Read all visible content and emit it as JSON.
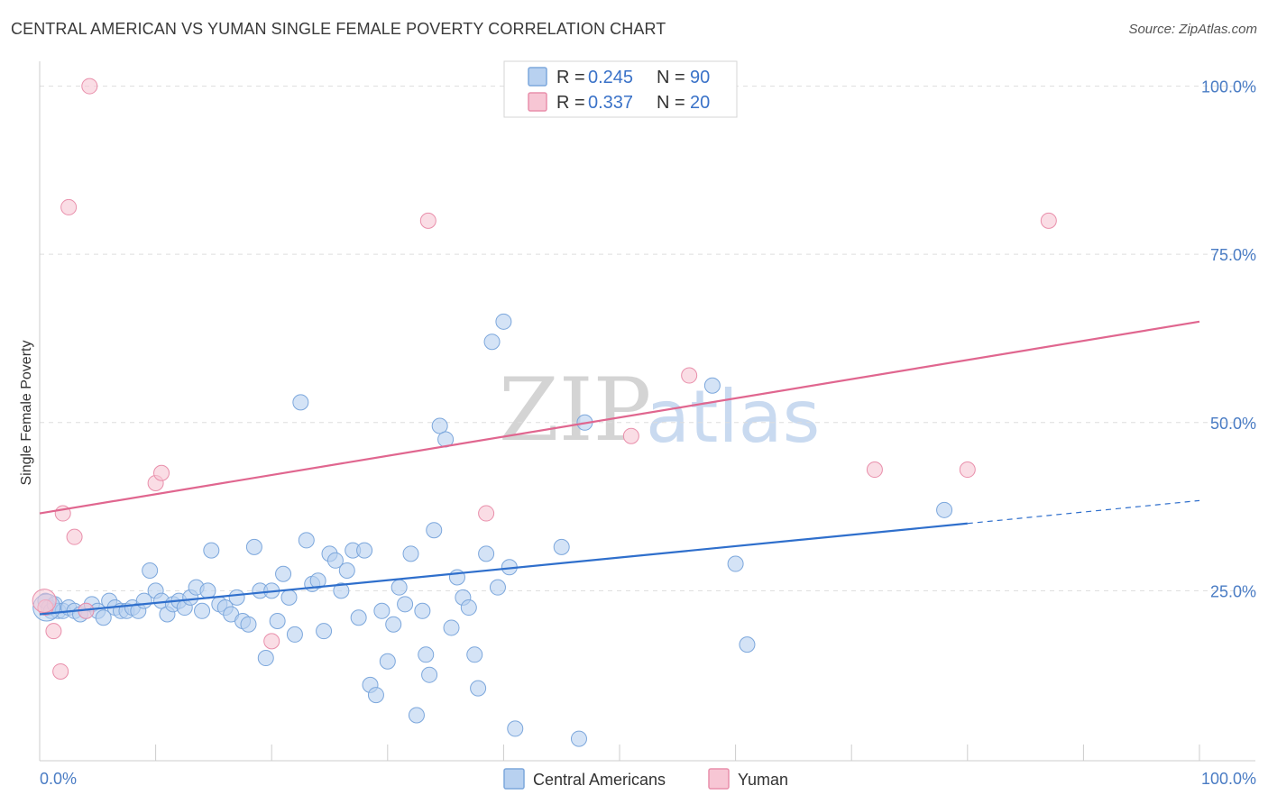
{
  "header": {
    "title": "CENTRAL AMERICAN VS YUMAN SINGLE FEMALE POVERTY CORRELATION CHART",
    "source": "Source: ZipAtlas.com"
  },
  "watermark": {
    "zip": "ZIP",
    "atlas": "atlas"
  },
  "colors": {
    "blue_fill": "#b8d1f0",
    "blue_stroke": "#7ca7dc",
    "blue_line": "#2f6fcc",
    "pink_fill": "#f7c6d4",
    "pink_stroke": "#e98fab",
    "pink_line": "#e0668f",
    "grid": "#dddddd"
  },
  "legend": {
    "rows": [
      {
        "r_label": "R =",
        "r_value": "0.245",
        "n_label": "N =",
        "n_value": "90"
      },
      {
        "r_label": "R =",
        "r_value": "0.337",
        "n_label": "N =",
        "n_value": "20"
      }
    ]
  },
  "bottom_legend": [
    "Central Americans",
    "Yuman"
  ],
  "chart_data": {
    "type": "scatter",
    "title": "CENTRAL AMERICAN VS YUMAN SINGLE FEMALE POVERTY CORRELATION CHART",
    "xlabel": "",
    "ylabel": "Single Female Poverty",
    "xlim": [
      0,
      100
    ],
    "ylim": [
      0,
      100
    ],
    "x_tick_labels": [
      "0.0%",
      "100.0%"
    ],
    "y_tick_labels": [
      "25.0%",
      "50.0%",
      "75.0%",
      "100.0%"
    ],
    "y_ticks": [
      25,
      50,
      75,
      100
    ],
    "grid": true,
    "legend_position": "top-center",
    "series": [
      {
        "name": "Central Americans",
        "r": 0.245,
        "n": 90,
        "trend": {
          "x0": 0,
          "y0": 21.5,
          "x1": 80,
          "y1": 35.0,
          "dashed_to_x": 100,
          "dashed_to_y": 38.4
        },
        "points": [
          [
            0.5,
            23.5
          ],
          [
            0.8,
            22.5
          ],
          [
            1.0,
            22.0
          ],
          [
            1.3,
            23.0
          ],
          [
            1.6,
            22.0
          ],
          [
            2.0,
            22.0
          ],
          [
            2.5,
            22.5
          ],
          [
            3.0,
            22.0
          ],
          [
            3.5,
            21.5
          ],
          [
            4.0,
            22.0
          ],
          [
            4.5,
            23.0
          ],
          [
            5.0,
            22.0
          ],
          [
            5.5,
            21.0
          ],
          [
            6.0,
            23.5
          ],
          [
            6.5,
            22.5
          ],
          [
            7.0,
            22.0
          ],
          [
            7.5,
            22.0
          ],
          [
            8.0,
            22.5
          ],
          [
            8.5,
            22.0
          ],
          [
            9.0,
            23.5
          ],
          [
            9.5,
            28.0
          ],
          [
            10.0,
            25.0
          ],
          [
            10.5,
            23.5
          ],
          [
            11.0,
            21.5
          ],
          [
            11.5,
            23.0
          ],
          [
            12.0,
            23.5
          ],
          [
            12.5,
            22.5
          ],
          [
            13.0,
            24.0
          ],
          [
            13.5,
            25.5
          ],
          [
            14.0,
            22.0
          ],
          [
            14.5,
            25.0
          ],
          [
            14.8,
            31.0
          ],
          [
            15.5,
            23.0
          ],
          [
            16.0,
            22.5
          ],
          [
            16.5,
            21.5
          ],
          [
            17.0,
            24.0
          ],
          [
            17.5,
            20.5
          ],
          [
            18.0,
            20.0
          ],
          [
            18.5,
            31.5
          ],
          [
            19.0,
            25.0
          ],
          [
            19.5,
            15.0
          ],
          [
            20.0,
            25.0
          ],
          [
            20.5,
            20.5
          ],
          [
            21.0,
            27.5
          ],
          [
            21.5,
            24.0
          ],
          [
            22.0,
            18.5
          ],
          [
            22.5,
            53.0
          ],
          [
            23.0,
            32.5
          ],
          [
            23.5,
            26.0
          ],
          [
            24.0,
            26.5
          ],
          [
            24.5,
            19.0
          ],
          [
            25.0,
            30.5
          ],
          [
            25.5,
            29.5
          ],
          [
            26.0,
            25.0
          ],
          [
            26.5,
            28.0
          ],
          [
            27.0,
            31.0
          ],
          [
            27.5,
            21.0
          ],
          [
            28.0,
            31.0
          ],
          [
            28.5,
            11.0
          ],
          [
            29.0,
            9.5
          ],
          [
            29.5,
            22.0
          ],
          [
            30.0,
            14.5
          ],
          [
            30.5,
            20.0
          ],
          [
            31.0,
            25.5
          ],
          [
            31.5,
            23.0
          ],
          [
            32.0,
            30.5
          ],
          [
            32.5,
            6.5
          ],
          [
            33.0,
            22.0
          ],
          [
            33.3,
            15.5
          ],
          [
            33.6,
            12.5
          ],
          [
            34.0,
            34.0
          ],
          [
            34.5,
            49.5
          ],
          [
            35.0,
            47.5
          ],
          [
            35.5,
            19.5
          ],
          [
            36.0,
            27.0
          ],
          [
            36.5,
            24.0
          ],
          [
            37.0,
            22.5
          ],
          [
            37.5,
            15.5
          ],
          [
            37.8,
            10.5
          ],
          [
            38.5,
            30.5
          ],
          [
            39.0,
            62.0
          ],
          [
            39.5,
            25.5
          ],
          [
            40.0,
            65.0
          ],
          [
            40.5,
            28.5
          ],
          [
            41.0,
            4.5
          ],
          [
            45.0,
            31.5
          ],
          [
            46.5,
            3.0
          ],
          [
            47.0,
            50.0
          ],
          [
            58.0,
            55.5
          ],
          [
            60.0,
            29.0
          ],
          [
            61.0,
            17.0
          ],
          [
            78.0,
            37.0
          ]
        ]
      },
      {
        "name": "Yuman",
        "r": 0.337,
        "n": 20,
        "trend": {
          "x0": 0,
          "y0": 36.5,
          "x1": 100,
          "y1": 65.0
        },
        "points": [
          [
            0.5,
            22.5
          ],
          [
            1.2,
            19.0
          ],
          [
            1.8,
            13.0
          ],
          [
            2.0,
            36.5
          ],
          [
            2.5,
            82.0
          ],
          [
            3.0,
            33.0
          ],
          [
            4.0,
            22.0
          ],
          [
            4.3,
            100.0
          ],
          [
            10.0,
            41.0
          ],
          [
            10.5,
            42.5
          ],
          [
            20.0,
            17.5
          ],
          [
            33.5,
            80.0
          ],
          [
            38.5,
            36.5
          ],
          [
            51.0,
            48.0
          ],
          [
            56.0,
            57.0
          ],
          [
            72.0,
            43.0
          ],
          [
            80.0,
            43.0
          ],
          [
            87.0,
            80.0
          ]
        ]
      }
    ]
  }
}
